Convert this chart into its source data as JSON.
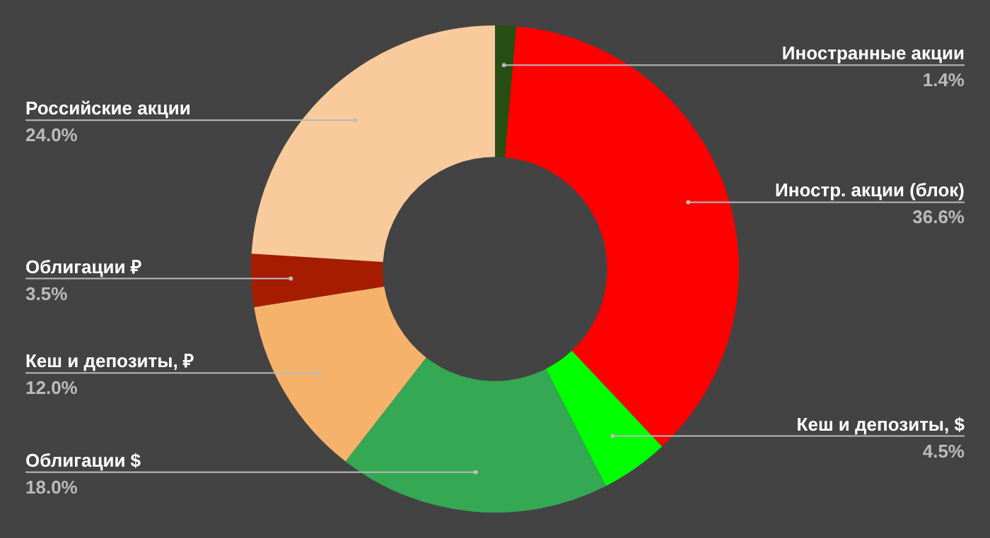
{
  "chart_data": {
    "type": "donut",
    "categories": [
      "Иностранные акции",
      "Иностр. акции (блок)",
      "Кеш и депозиты, $",
      "Облигации $",
      "Кеш и депозиты, ₽",
      "Облигации ₽",
      "Российские акции"
    ],
    "values": [
      1.4,
      36.6,
      4.5,
      18.0,
      12.0,
      3.5,
      24.0
    ],
    "value_labels": [
      "1.4%",
      "36.6%",
      "4.5%",
      "18.0%",
      "12.0%",
      "3.5%",
      "24.0%"
    ],
    "colors": [
      "#274e13",
      "#ff0000",
      "#00ff00",
      "#34a853",
      "#f6b26b",
      "#a61c00",
      "#f9cb9c"
    ],
    "legend": false
  }
}
